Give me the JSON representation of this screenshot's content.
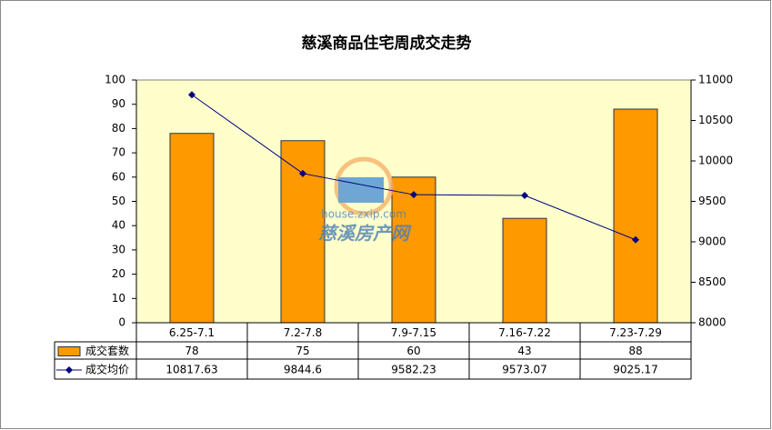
{
  "chart_data": {
    "type": "bar",
    "title": "慈溪商品住宅周成交走势",
    "categories": [
      "6.25-7.1",
      "7.2-7.8",
      "7.9-7.15",
      "7.16-7.22",
      "7.23-7.29"
    ],
    "series": [
      {
        "name": "成交套数",
        "type": "bar",
        "color": "#ff9900",
        "values": [
          78,
          75,
          60,
          43,
          88
        ]
      },
      {
        "name": "成交均价",
        "type": "line",
        "color": "#000080",
        "axis": "y2",
        "values": [
          10817.63,
          9844.6,
          9582.23,
          9573.07,
          9025.17
        ]
      }
    ],
    "ylim": [
      0,
      100
    ],
    "yticks": [
      0,
      10,
      20,
      30,
      40,
      50,
      60,
      70,
      80,
      90,
      100
    ],
    "y2lim": [
      8000,
      11000
    ],
    "y2ticks": [
      8000,
      8500,
      9000,
      9500,
      10000,
      10500,
      11000
    ],
    "plot_background": "#ffffcc",
    "watermark": {
      "url": "house.zxip.com",
      "name": "慈溪房产网"
    }
  }
}
